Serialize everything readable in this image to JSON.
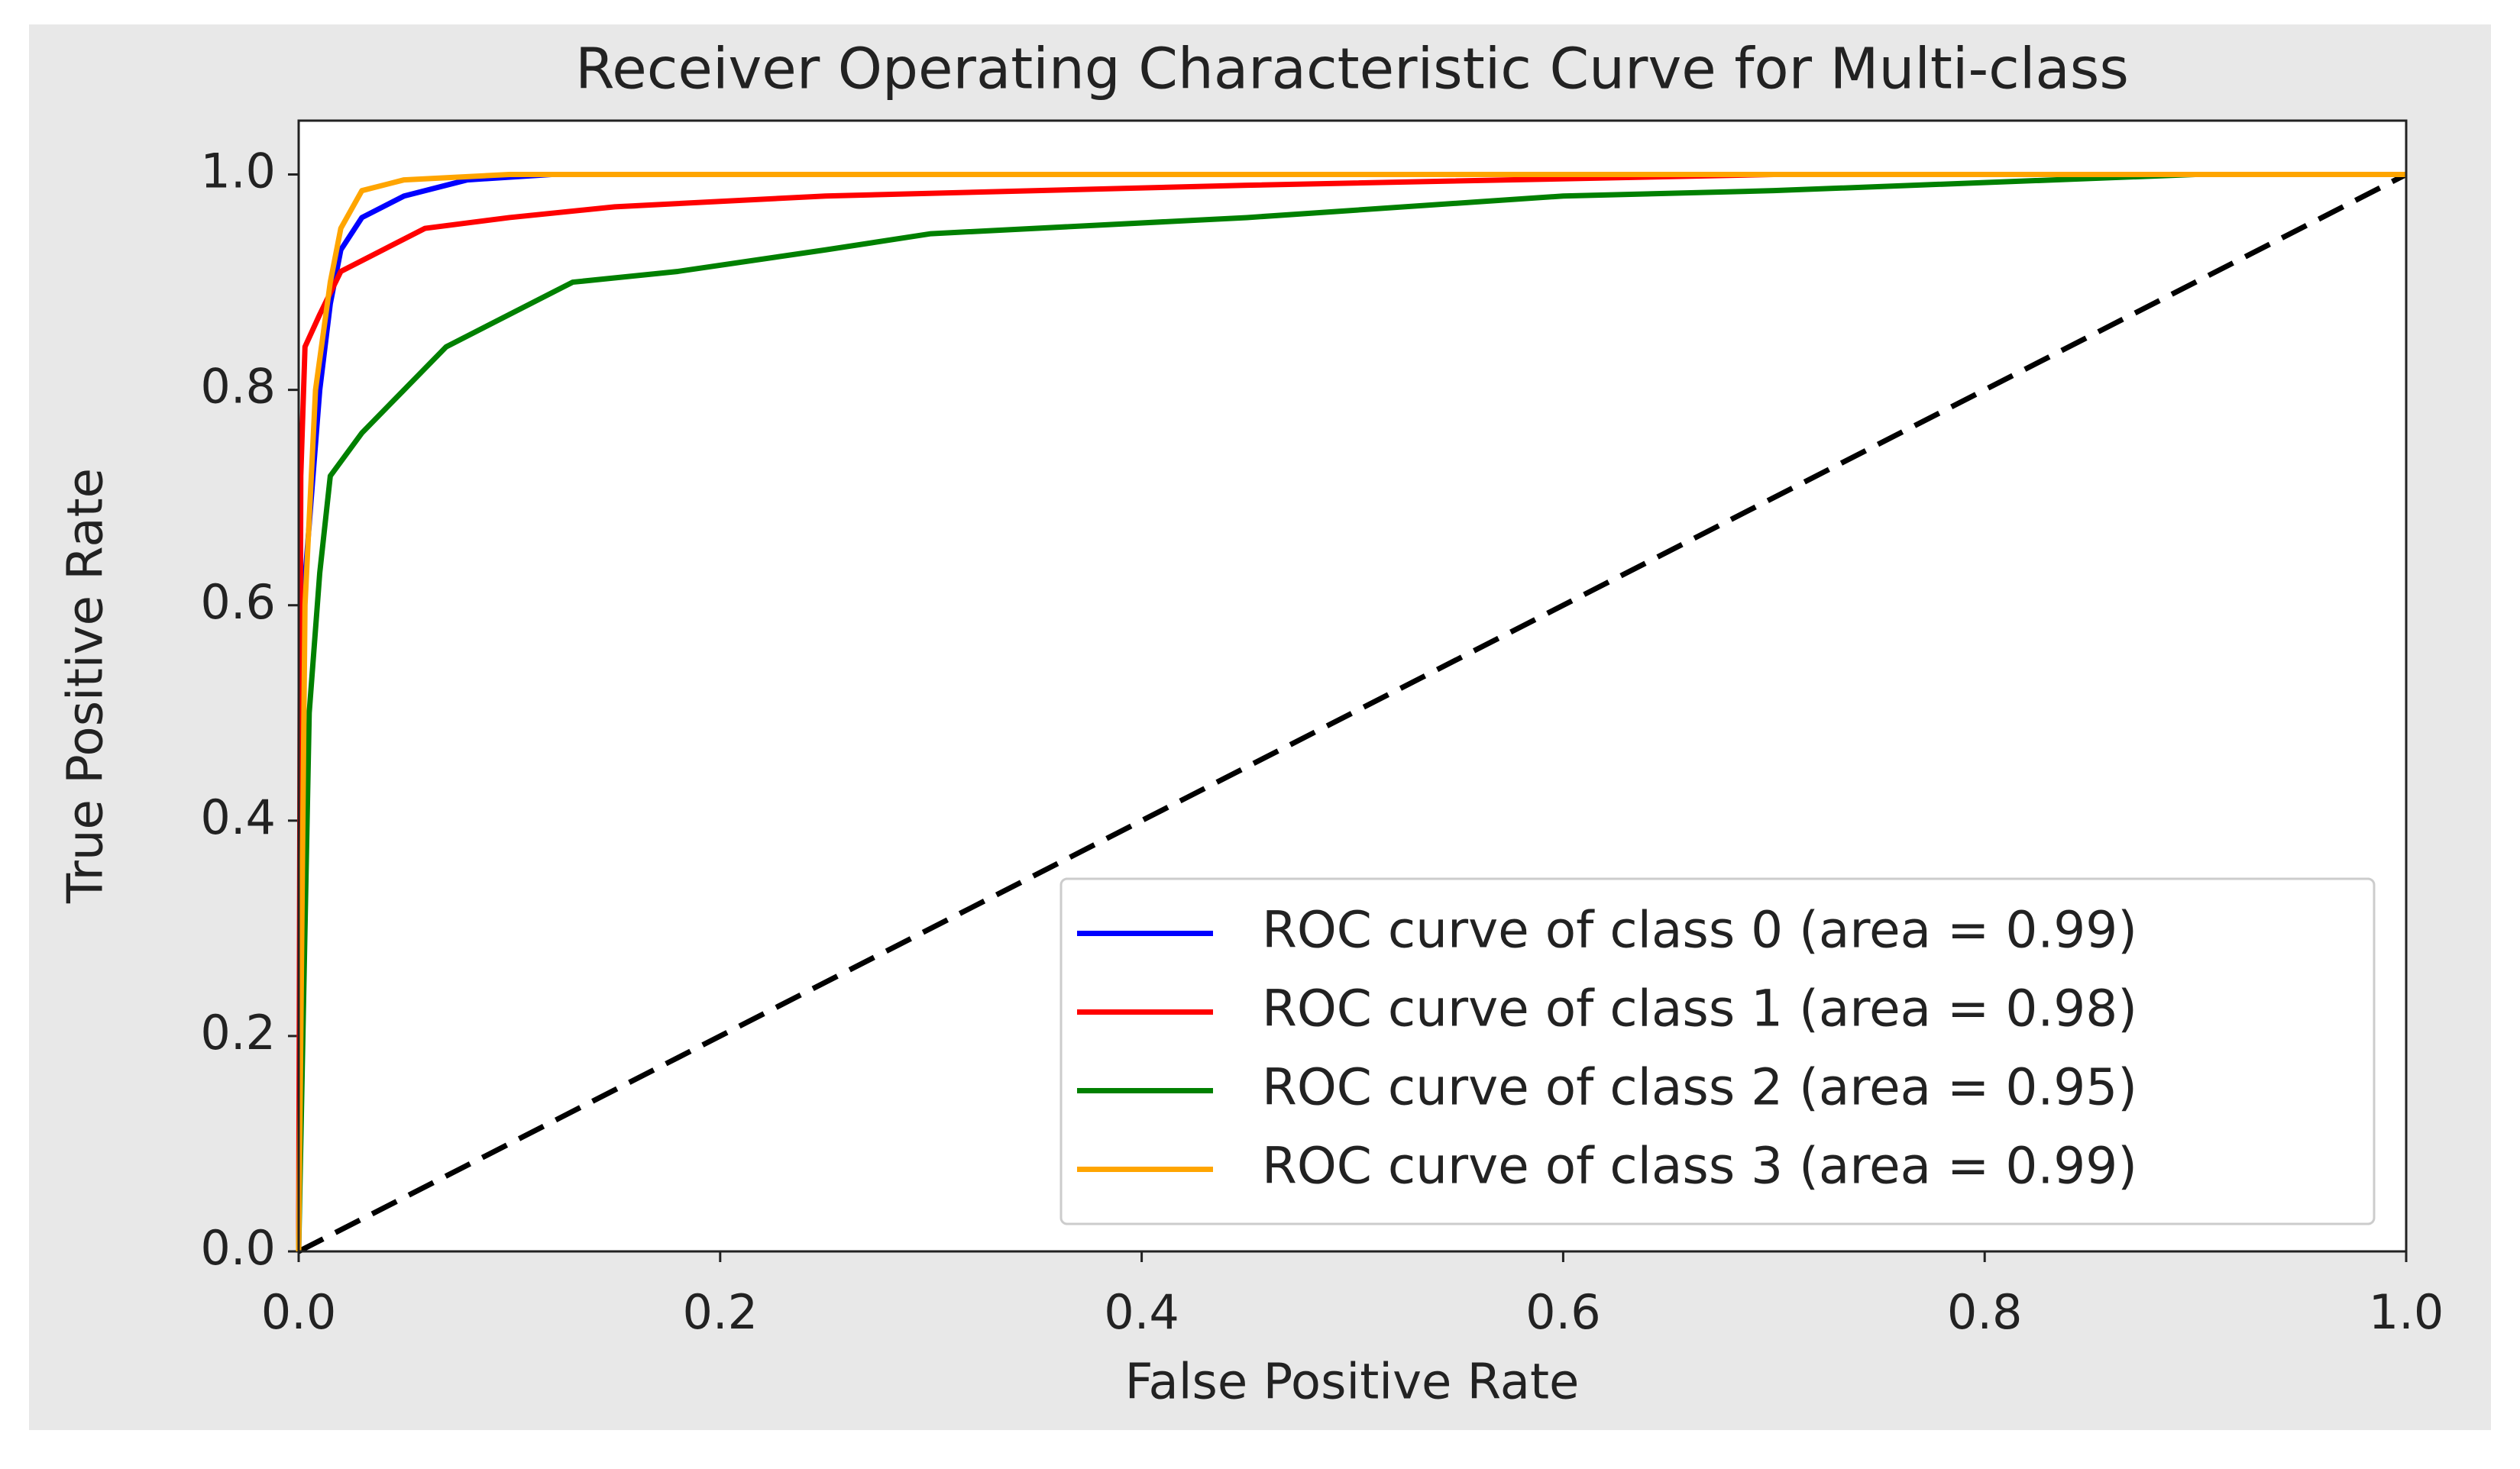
{
  "chart_data": {
    "type": "line",
    "title": "Receiver Operating Characteristic Curve for Multi-class",
    "x_label": "False Positive Rate",
    "y_label": "True Positive Rate",
    "xlim": [
      0,
      1
    ],
    "ylim": [
      0,
      1.05
    ],
    "xticks": [
      {
        "value": 0,
        "label": "0.0"
      },
      0.2,
      0.4,
      0.6,
      0.8,
      {
        "value": 1,
        "label": "1.0"
      }
    ],
    "yticks": [
      {
        "value": 0,
        "label": "0.0"
      },
      0.2,
      0.4,
      0.6,
      0.8,
      {
        "value": 1,
        "label": "1.0"
      }
    ],
    "legend": "lower right",
    "series": [
      {
        "name": "ROC curve of class 0 (area = 0.99)",
        "color": "blue",
        "x": [
          0,
          0.002,
          0.01,
          0.015,
          0.02,
          0.03,
          0.05,
          0.08,
          0.12,
          1
        ],
        "values": [
          0,
          0.6,
          0.8,
          0.88,
          0.93,
          0.96,
          0.98,
          0.995,
          1.0,
          1.0
        ]
      },
      {
        "name": "ROC curve of class 1 (area = 0.98)",
        "color": "red",
        "x": [
          0,
          0.001,
          0.003,
          0.01,
          0.02,
          0.04,
          0.06,
          0.1,
          0.15,
          0.25,
          0.45,
          0.7,
          1
        ],
        "values": [
          0,
          0.72,
          0.84,
          0.87,
          0.91,
          0.93,
          0.95,
          0.96,
          0.97,
          0.98,
          0.99,
          1.0,
          1.0
        ]
      },
      {
        "name": "ROC curve of class 2 (area = 0.95)",
        "color": "green",
        "x": [
          0,
          0.005,
          0.01,
          0.015,
          0.03,
          0.05,
          0.07,
          0.1,
          0.13,
          0.18,
          0.25,
          0.3,
          0.45,
          0.6,
          0.7,
          0.9,
          1
        ],
        "values": [
          0,
          0.5,
          0.63,
          0.72,
          0.76,
          0.8,
          0.84,
          0.87,
          0.9,
          0.91,
          0.93,
          0.945,
          0.96,
          0.98,
          0.985,
          1.0,
          1.0
        ]
      },
      {
        "name": "ROC curve of class 3 (area = 0.99)",
        "color": "orange",
        "x": [
          0,
          0.003,
          0.008,
          0.015,
          0.02,
          0.03,
          0.05,
          0.1,
          1
        ],
        "values": [
          0,
          0.6,
          0.8,
          0.9,
          0.95,
          0.985,
          0.995,
          1.0,
          1.0
        ]
      }
    ],
    "reference_line": {
      "x": [
        0,
        1
      ],
      "values": [
        0,
        1
      ],
      "color": "black",
      "style": "dashed"
    }
  }
}
